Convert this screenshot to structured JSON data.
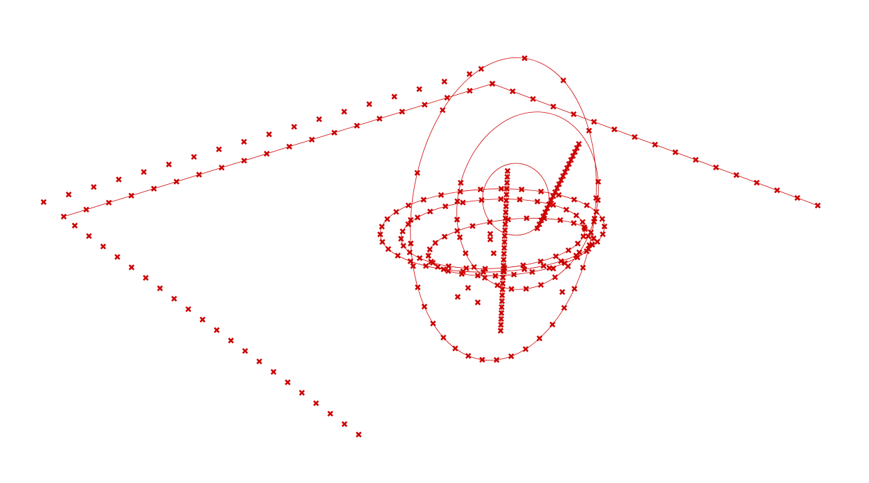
{
  "scene": {
    "description_type": "3d-trajectory-plot",
    "background_color": "#ffffff",
    "marker_color": "#cc0000",
    "line_color": "#cc0000",
    "marker_icon": "x-marker-icon"
  }
}
